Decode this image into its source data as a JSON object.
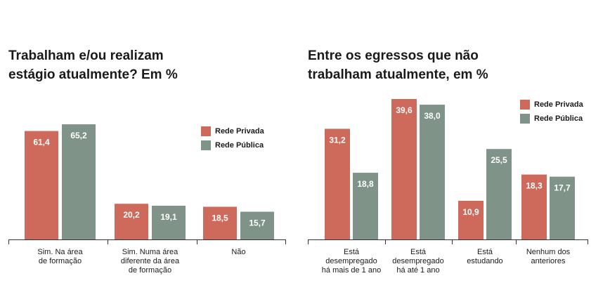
{
  "colors": {
    "privada": "#cd6a5c",
    "publica": "#7f9389",
    "axis": "#333333",
    "value_text": "#ffffff"
  },
  "chart_data": [
    {
      "type": "bar",
      "title": "Trabalham e/ou realizam estágio atualmente? Em %",
      "title_lines": [
        "Trabalham e/ou realizam",
        "estágio atualmente? Em %"
      ],
      "categories": [
        "Sim. Na área de formação",
        "Sim. Numa área diferente da área de formação",
        "Não"
      ],
      "category_lines": [
        [
          "Sim. Na área",
          "de formação"
        ],
        [
          "Sim. Numa área",
          "diferente da área",
          "de formação"
        ],
        [
          "Não"
        ]
      ],
      "series": [
        {
          "name": "Rede Privada",
          "values": [
            61.4,
            20.2,
            18.5
          ],
          "labels": [
            "61,4",
            "20,2",
            "18,5"
          ]
        },
        {
          "name": "Rede Pública",
          "values": [
            65.2,
            19.1,
            15.7
          ],
          "labels": [
            "65,2",
            "19,1",
            "15,7"
          ]
        }
      ],
      "ylim": [
        0,
        65.2
      ],
      "legend_position": "right",
      "grid": false
    },
    {
      "type": "bar",
      "title": "Entre os egressos que não trabalham atualmente, em %",
      "title_lines": [
        "Entre os egressos que não",
        "trabalham atualmente, em %"
      ],
      "categories": [
        "Está desempregado há mais de 1 ano",
        "Está desempregado há até 1 ano",
        "Está estudando",
        "Nenhum dos anteriores"
      ],
      "category_lines": [
        [
          "Está",
          "desempregado",
          "há mais de 1 ano"
        ],
        [
          "Está",
          "desempregado",
          "há até 1 ano"
        ],
        [
          "Está",
          "estudando"
        ],
        [
          "Nenhum dos",
          "anteriores"
        ]
      ],
      "series": [
        {
          "name": "Rede Privada",
          "values": [
            31.2,
            39.6,
            10.9,
            18.3
          ],
          "labels": [
            "31,2",
            "39,6",
            "10,9",
            "18,3"
          ]
        },
        {
          "name": "Rede Pública",
          "values": [
            18.8,
            38.0,
            25.5,
            17.7
          ],
          "labels": [
            "18,8",
            "38,0",
            "25,5",
            "17,7"
          ]
        }
      ],
      "ylim": [
        0,
        39.6
      ],
      "legend_position": "top-right",
      "grid": false
    }
  ]
}
